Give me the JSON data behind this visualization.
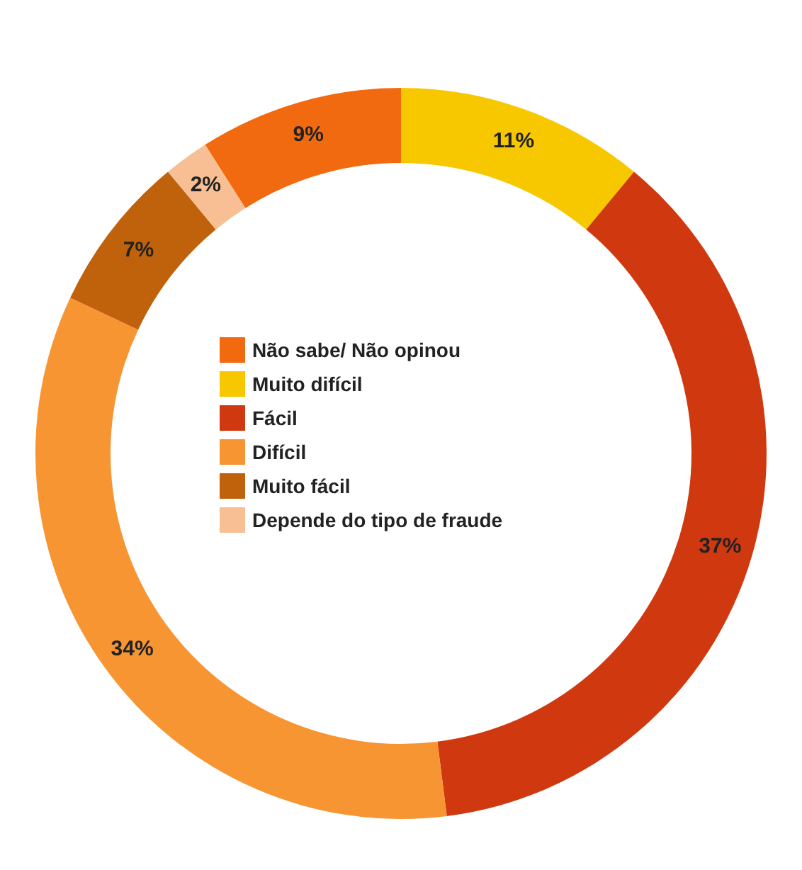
{
  "chart_data": {
    "type": "donut",
    "categories": [
      "Não sabe/ Não opinou",
      "Muito difícil",
      "Fácil",
      "Difícil",
      "Muito fácil",
      "Depende do tipo de fraude"
    ],
    "values": [
      9,
      11,
      37,
      34,
      7,
      2
    ],
    "colors": [
      "#f26a10",
      "#f7c800",
      "#d0390f",
      "#f79533",
      "#c0620c",
      "#f7bf93"
    ],
    "value_labels": [
      "9%",
      "11%",
      "37%",
      "34%",
      "7%",
      "2%"
    ],
    "legend": "center"
  }
}
